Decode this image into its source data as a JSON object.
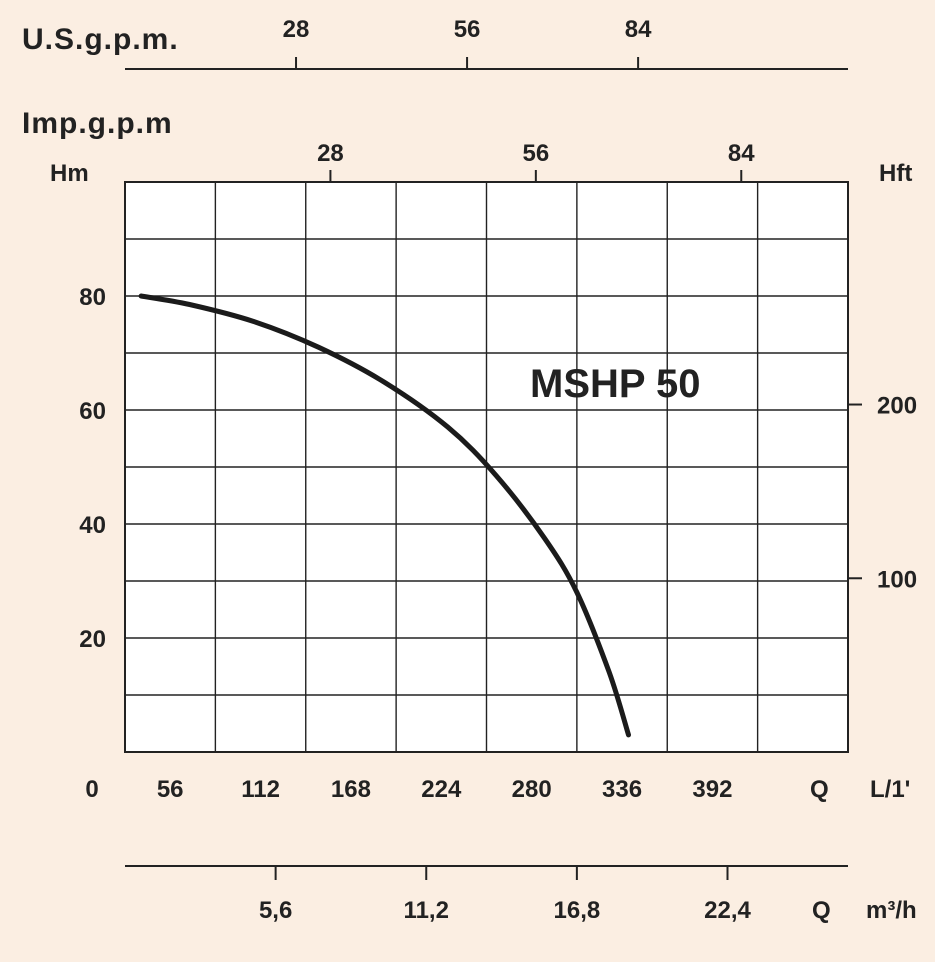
{
  "chart_data": {
    "type": "line",
    "title": "",
    "series": [
      {
        "name": "MSHP 50",
        "x": [
          10,
          40,
          80,
          120,
          160,
          200,
          230,
          260,
          280,
          300,
          312
        ],
        "y": [
          80,
          78.5,
          75.5,
          71,
          65,
          57,
          48.5,
          37.5,
          28,
          14,
          3
        ]
      }
    ],
    "primary_x_axis": {
      "label": "Q",
      "unit": "L/1'",
      "ticks": [
        "0",
        "56",
        "112",
        "168",
        "224",
        "280",
        "336",
        "392"
      ],
      "range": [
        0,
        448
      ]
    },
    "primary_y_axis": {
      "label": "Hm",
      "ticks": [
        "20",
        "40",
        "60",
        "80"
      ],
      "range": [
        0,
        100
      ]
    },
    "secondary_y_axis": {
      "label": "Hft",
      "ticks": [
        "100",
        "200"
      ]
    },
    "top_axis_us": {
      "label": "U.S.g.p.m.",
      "ticks": [
        "28",
        "56",
        "84"
      ]
    },
    "top_axis_imp": {
      "label": "Imp.g.p.m",
      "ticks": [
        "28",
        "56",
        "84"
      ]
    },
    "bottom_axis_m3h": {
      "label": "Q",
      "unit": "m³/h",
      "ticks": [
        "5,6",
        "11,2",
        "16,8",
        "22,4"
      ]
    },
    "grid": true,
    "colors": {
      "background": "#fbeee2",
      "plot": "#ffffff",
      "ink": "#222222"
    }
  }
}
